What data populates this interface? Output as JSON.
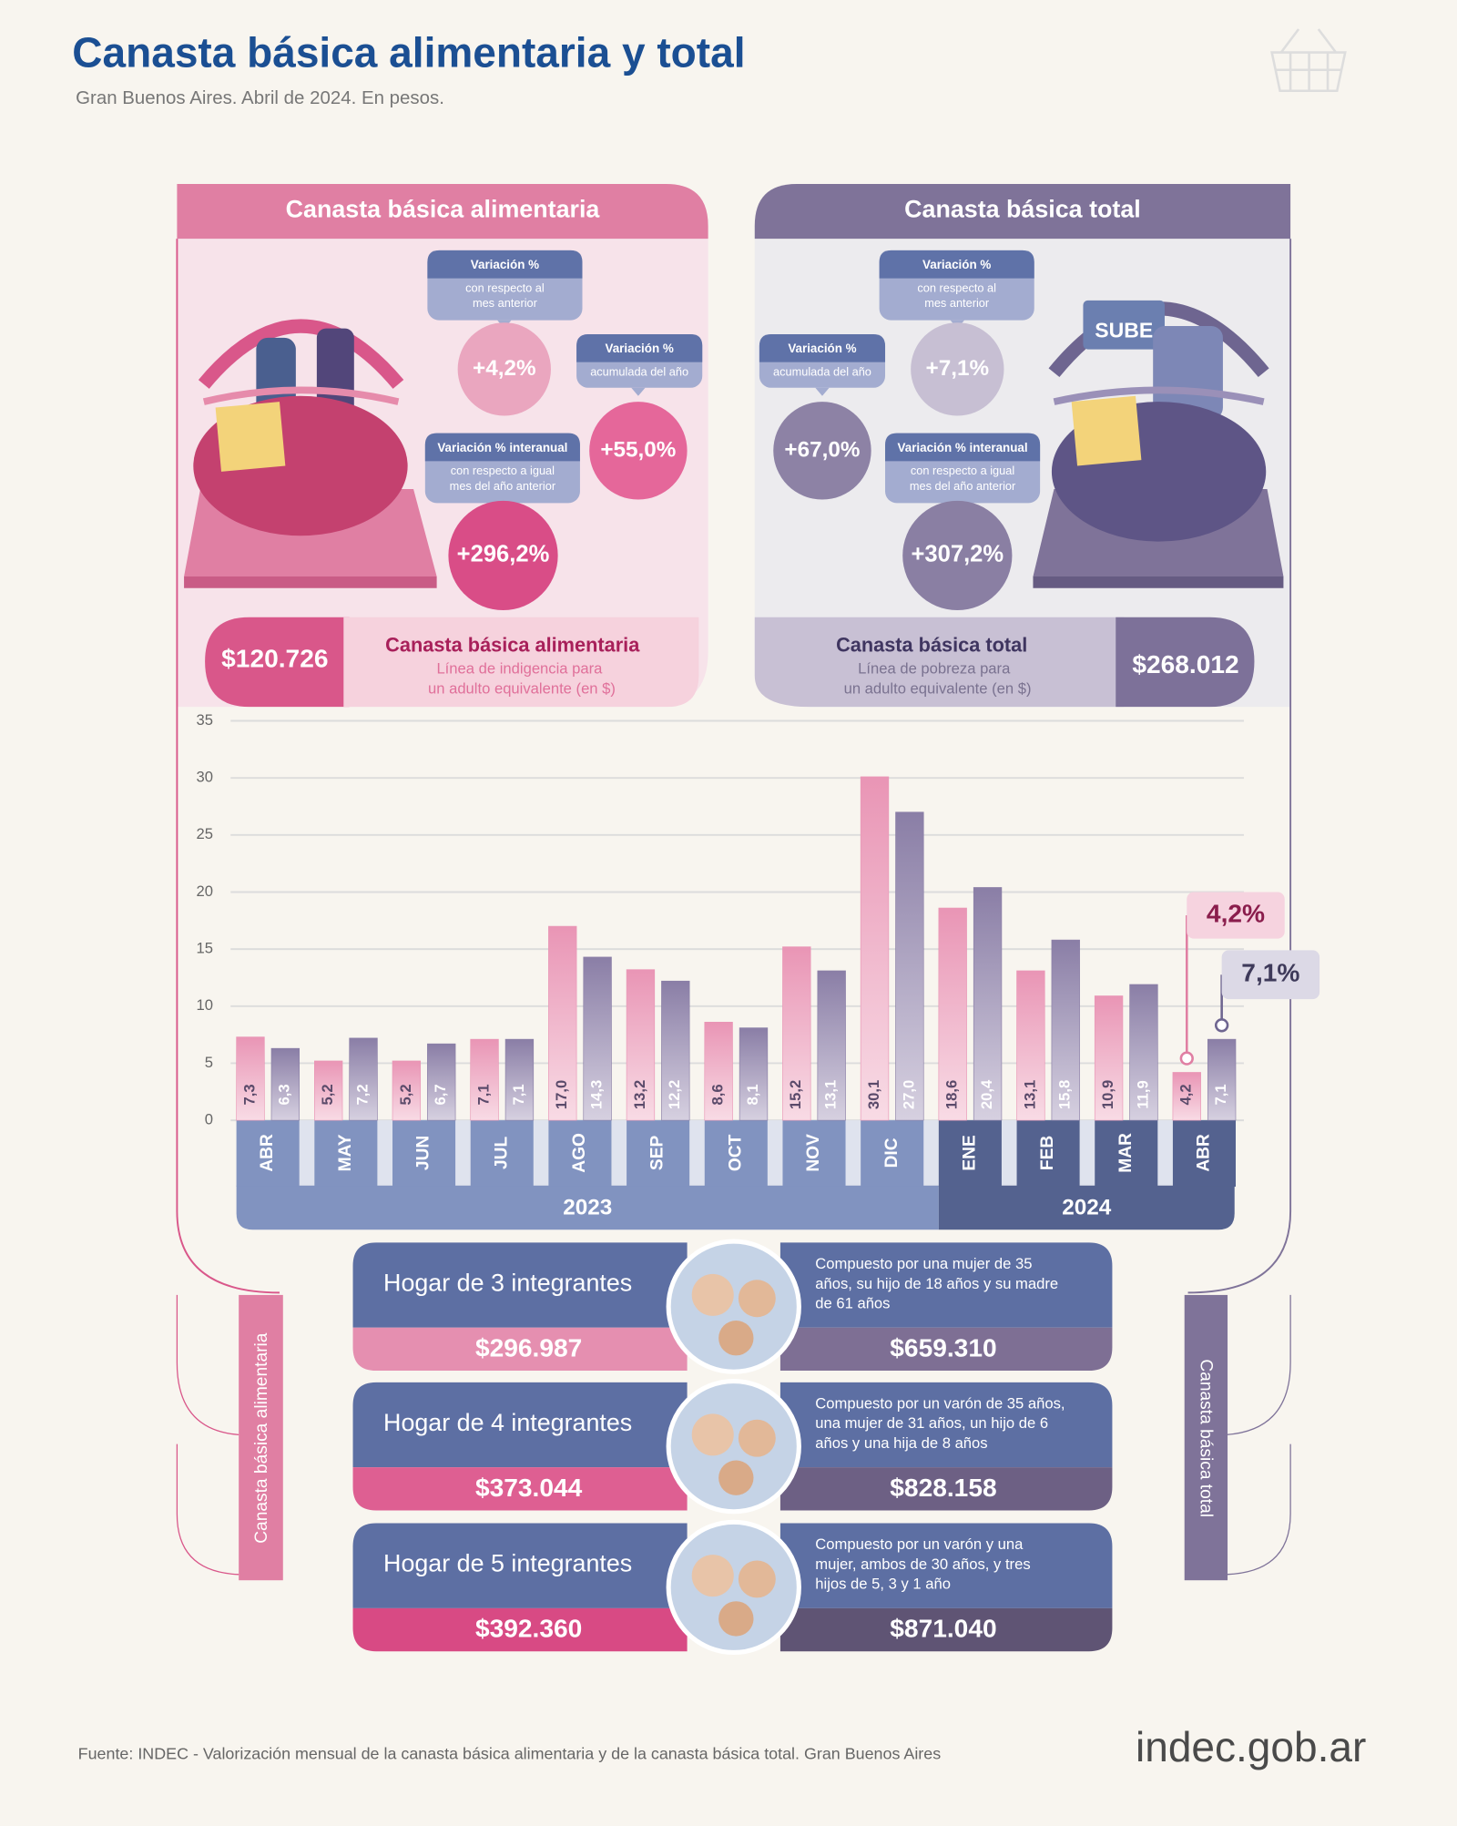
{
  "header": {
    "title": "Canasta básica alimentaria y total",
    "subtitle": "Gran Buenos Aires. Abril de 2024. En pesos."
  },
  "panels": [
    {
      "title": "Canasta básica alimentaria",
      "stats": [
        {
          "title": "Variación %",
          "sub": [
            "con respecto al",
            "mes anterior"
          ],
          "value": "+4,2%"
        },
        {
          "title": "Variación %",
          "sub": [
            "acumulada del año"
          ],
          "value": "+55,0%"
        },
        {
          "title": "Variación % interanual",
          "sub": [
            "con respecto a igual",
            "mes del año anterior"
          ],
          "value": "+296,2%"
        }
      ],
      "price": "$120.726",
      "price_title": "Canasta básica alimentaria",
      "price_desc": [
        "Línea de indigencia para",
        "un adulto equivalente (en $)"
      ]
    },
    {
      "title": "Canasta básica total",
      "stats": [
        {
          "title": "Variación %",
          "sub": [
            "con respecto al",
            "mes anterior"
          ],
          "value": "+7,1%"
        },
        {
          "title": "Variación %",
          "sub": [
            "acumulada del año"
          ],
          "value": "+67,0%"
        },
        {
          "title": "Variación % interanual",
          "sub": [
            "con respecto a igual",
            "mes del año anterior"
          ],
          "value": "+307,2%"
        }
      ],
      "price": "$268.012",
      "price_title": "Canasta básica total",
      "price_desc": [
        "Línea de pobreza para",
        "un adulto equivalente (en $)"
      ],
      "card": "SUBE"
    }
  ],
  "chart_data": {
    "type": "bar",
    "categories": [
      "ABR",
      "MAY",
      "JUN",
      "JUL",
      "AGO",
      "SEP",
      "OCT",
      "NOV",
      "DIC",
      "ENE",
      "FEB",
      "MAR",
      "ABR"
    ],
    "groups": [
      "2023",
      "2024"
    ],
    "series": [
      {
        "color": "#e995b5",
        "values": [
          7.3,
          5.2,
          5.2,
          7.1,
          17.0,
          13.2,
          8.6,
          15.2,
          30.1,
          18.6,
          13.1,
          10.9,
          4.2
        ],
        "value_labels": [
          "7,3",
          "5,2",
          "5,2",
          "7,1",
          "17,0",
          "13,2",
          "8,6",
          "15,2",
          "30,1",
          "18,6",
          "13,1",
          "10,9",
          "4,2"
        ]
      },
      {
        "color": "#8a7ea6",
        "values": [
          6.3,
          7.2,
          6.7,
          7.1,
          14.3,
          12.2,
          8.1,
          13.1,
          27.0,
          20.4,
          15.8,
          11.9,
          7.1
        ],
        "value_labels": [
          "6,3",
          "7,2",
          "6,7",
          "7,1",
          "14,3",
          "12,2",
          "8,1",
          "13,1",
          "27,0",
          "20,4",
          "15,8",
          "11,9",
          "7,1"
        ]
      }
    ],
    "ylim": [
      0,
      35
    ],
    "yticks": [
      0,
      5,
      10,
      15,
      20,
      25,
      30,
      35
    ],
    "grid": true,
    "callouts": [
      "4,2%",
      "7,1%"
    ]
  },
  "side_labels": [
    "Canasta básica alimentaria",
    "Canasta básica total"
  ],
  "households": [
    {
      "title": "Hogar de 3 integrantes",
      "cba": "$296.987",
      "cbt": "$659.310",
      "desc": [
        "Compuesto por una mujer de 35",
        "años, su hijo de 18 años y su madre",
        "de 61 años"
      ]
    },
    {
      "title": "Hogar de 4 integrantes",
      "cba": "$373.044",
      "cbt": "$828.158",
      "desc": [
        "Compuesto por un varón de 35 años,",
        "una mujer de 31 años, un hijo de 6",
        "años y una hija de 8 años"
      ]
    },
    {
      "title": "Hogar de 5 integrantes",
      "cba": "$392.360",
      "cbt": "$871.040",
      "desc": [
        "Compuesto por un varón y una",
        "mujer, ambos de 30 años, y tres",
        "hijos de 5, 3 y 1 año"
      ]
    }
  ],
  "footer": {
    "source": "Fuente: INDEC - Valorización mensual de la canasta básica alimentaria y de la canasta básica total. Gran Buenos Aires",
    "logo": "indec.gob.ar"
  }
}
